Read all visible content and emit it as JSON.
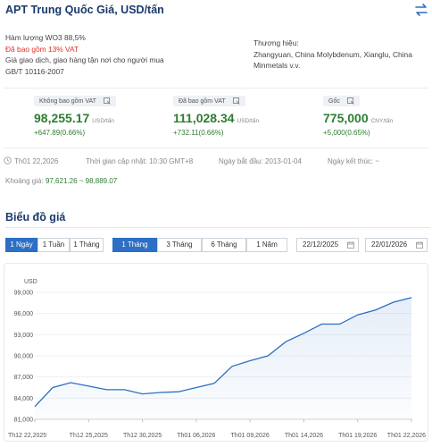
{
  "header": {
    "title": "APT Trung Quốc Giá, USD/tấn",
    "swap_icon": "swap-arrows-icon"
  },
  "specs": {
    "line1": "Hàm lượng WO3 88,5%",
    "line2": "Đã bao gồm 13% VAT",
    "line3": "Giá giao dịch, giao hàng tận nơi cho người mua",
    "line4": "GB/T 10116-2007",
    "brand_label": "Thương hiệu:",
    "brand_value1": "Zhangyuan, China Molybdenum, Xianglu, China",
    "brand_value2": "Minmetals v.v."
  },
  "cards": [
    {
      "tag": "Không bao gồm VAT",
      "value": "98,255.17",
      "unit": "USD/tấn",
      "change": "+647.89(0.66%)"
    },
    {
      "tag": "Đã bao gồm VAT",
      "value": "111,028.34",
      "unit": "USD/tấn",
      "change": "+732.11(0.66%)"
    },
    {
      "tag": "Gốc",
      "value": "775,000",
      "unit": "CNY/tấn",
      "change": "+5,000(0.65%)"
    }
  ],
  "meta": {
    "date": "Th01 22,2026",
    "updated": "Thời gian cập nhật: 10:30 GMT+8",
    "start": "Ngày bắt đầu: 2013-01-04",
    "end": "Ngày kết thúc: ~"
  },
  "range": {
    "label": "Khoảng giá: ",
    "value": "97,621.26 ~ 98,889.07"
  },
  "chart_section": {
    "title": "Biểu đồ giá"
  },
  "controls": {
    "period_buttons": [
      "1 Ngày",
      "1 Tuần",
      "1 Tháng"
    ],
    "range_buttons": [
      "1 Tháng",
      "3 Tháng",
      "6 Tháng",
      "1 Năm"
    ],
    "start_date": "22/12/2025",
    "end_date": "22/01/2026"
  },
  "colors": {
    "accent": "#2c6fc4",
    "positive": "#2e7d32",
    "title": "#1a3a6b",
    "vat_red": "#d9342b"
  },
  "chart_data": {
    "type": "area",
    "ylabel": "USD",
    "ylim": [
      81000,
      99000
    ],
    "yticks": [
      81000,
      84000,
      87000,
      90000,
      93000,
      96000,
      99000
    ],
    "ytick_labels": [
      "81,000",
      "84,000",
      "87,000",
      "90,000",
      "93,000",
      "96,000",
      "99,000"
    ],
    "xtick_labels": [
      "Th12 22,2025",
      "Th12 25,2025",
      "Th12 30,2025",
      "Th01 06,2026",
      "Th01 09,2026",
      "Th01 14,2026",
      "Th01 19,2026",
      "Th01 22,2026"
    ],
    "x_index": [
      0,
      1,
      2,
      3,
      4,
      5,
      6,
      7,
      8,
      9,
      10,
      11,
      12,
      13,
      14,
      15,
      16,
      17,
      18,
      19,
      20,
      21
    ],
    "xtick_positions": [
      0,
      3,
      6,
      9,
      12,
      15,
      18,
      21
    ],
    "values": [
      82800,
      85500,
      86200,
      85700,
      85200,
      85200,
      84600,
      84800,
      84900,
      85500,
      86100,
      88500,
      89300,
      90000,
      92000,
      93200,
      94500,
      94500,
      95800,
      96500,
      97600,
      98255
    ],
    "grid": true,
    "legend": "none"
  }
}
